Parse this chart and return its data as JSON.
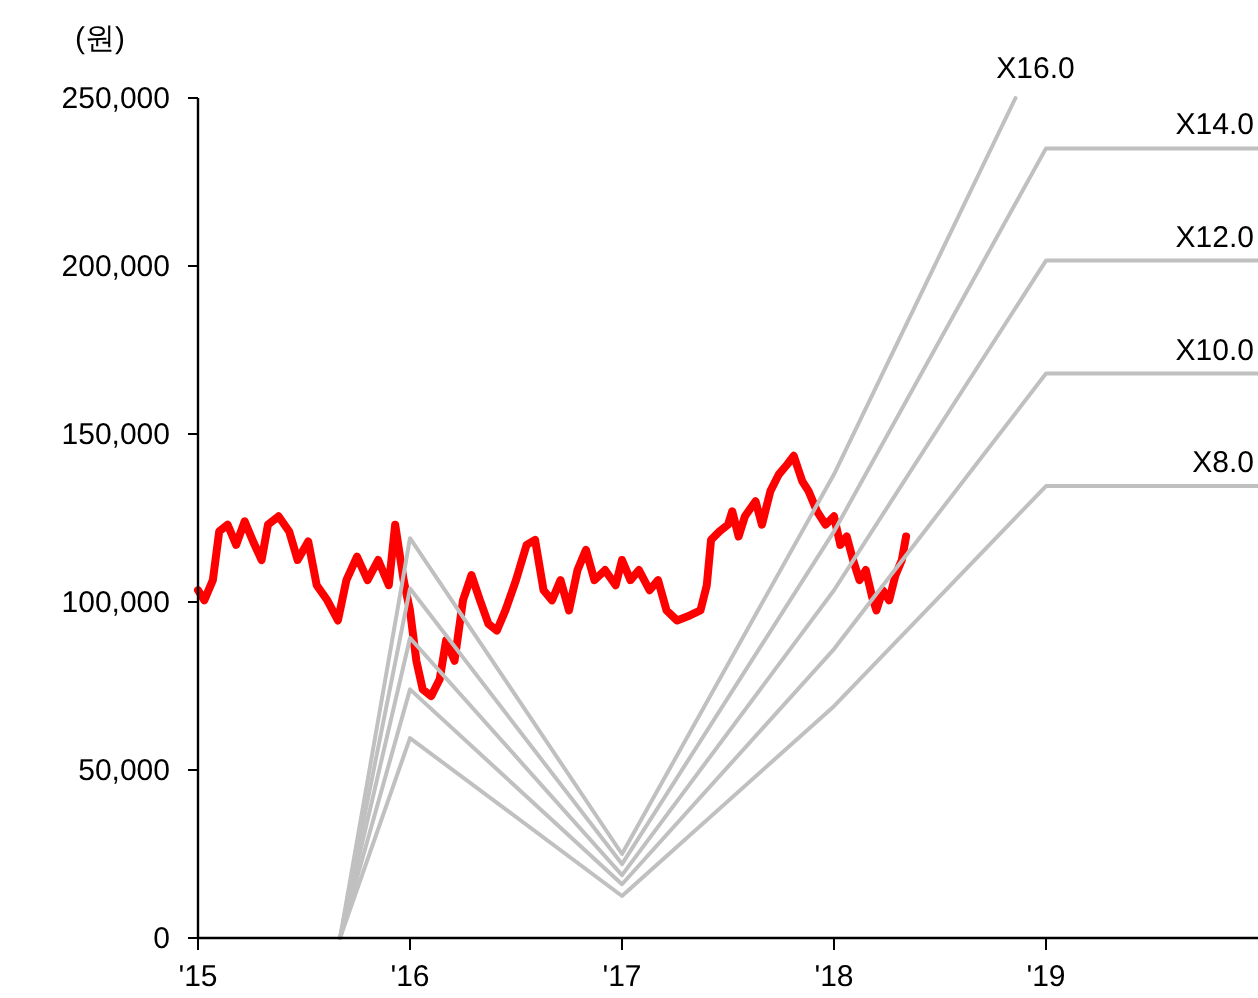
{
  "chart_data": {
    "type": "line",
    "ylabel": "(원)",
    "xlim": [
      2015,
      2020
    ],
    "ylim": [
      0,
      250000
    ],
    "xticks": [
      {
        "value": 2015,
        "label": "'15"
      },
      {
        "value": 2016,
        "label": "'16"
      },
      {
        "value": 2017,
        "label": "'17"
      },
      {
        "value": 2018,
        "label": "'18"
      },
      {
        "value": 2019,
        "label": "'19"
      }
    ],
    "yticks": [
      {
        "value": 0,
        "label": "0"
      },
      {
        "value": 50000,
        "label": "50,000"
      },
      {
        "value": 100000,
        "label": "100,000"
      },
      {
        "value": 150000,
        "label": "150,000"
      },
      {
        "value": 200000,
        "label": "200,000"
      },
      {
        "value": 250000,
        "label": "250,000"
      }
    ],
    "grid": false,
    "marker": "none",
    "line_style": "solid",
    "series": [
      {
        "color": "#ff0000",
        "x": [
          2015.0,
          2015.03,
          2015.07,
          2015.1,
          2015.14,
          2015.18,
          2015.22,
          2015.26,
          2015.3,
          2015.33,
          2015.38,
          2015.43,
          2015.47,
          2015.52,
          2015.56,
          2015.61,
          2015.66,
          2015.7,
          2015.75,
          2015.8,
          2015.85,
          2015.9,
          2015.93,
          2015.97,
          2016.0,
          2016.03,
          2016.06,
          2016.1,
          2016.14,
          2016.17,
          2016.21,
          2016.25,
          2016.29,
          2016.33,
          2016.37,
          2016.41,
          2016.45,
          2016.5,
          2016.55,
          2016.59,
          2016.63,
          2016.67,
          2016.71,
          2016.75,
          2016.79,
          2016.83,
          2016.87,
          2016.92,
          2016.97,
          2017.0,
          2017.04,
          2017.08,
          2017.13,
          2017.17,
          2017.21,
          2017.26,
          2017.32,
          2017.37,
          2017.4,
          2017.42,
          2017.46,
          2017.5,
          2017.52,
          2017.55,
          2017.58,
          2017.63,
          2017.66,
          2017.7,
          2017.74,
          2017.78,
          2017.81,
          2017.85,
          2017.88,
          2017.92,
          2017.96,
          2018.0,
          2018.03,
          2018.06,
          2018.09,
          2018.12,
          2018.15,
          2018.18,
          2018.2,
          2018.23,
          2018.26,
          2018.29,
          2018.32,
          2018.34
        ],
        "values": [
          103500,
          100500,
          106500,
          121000,
          123000,
          117000,
          124000,
          118000,
          112500,
          123000,
          125500,
          121000,
          112500,
          118000,
          105000,
          100500,
          94500,
          106500,
          113500,
          106500,
          112500,
          105000,
          123000,
          106500,
          97500,
          82500,
          74000,
          72000,
          77000,
          88500,
          82500,
          100500,
          108000,
          100500,
          93500,
          91500,
          97500,
          106500,
          117000,
          118500,
          103500,
          100500,
          106500,
          97500,
          109500,
          115500,
          106500,
          109500,
          105000,
          112500,
          106500,
          109500,
          103500,
          106500,
          97500,
          94500,
          96000,
          97500,
          105000,
          118500,
          121000,
          123000,
          127000,
          119500,
          125500,
          130000,
          123000,
          133000,
          138000,
          141000,
          143500,
          136000,
          133000,
          127000,
          123000,
          125500,
          117000,
          119500,
          112500,
          106500,
          109500,
          101500,
          97500,
          103500,
          100500,
          108000,
          112500,
          119500
        ]
      },
      {
        "name": "X16.0",
        "color": "#c0c0c0",
        "x": [
          2015.67,
          2016,
          2017,
          2018,
          2018.856
        ],
        "values": [
          0,
          119000,
          25000,
          138000,
          250000
        ]
      },
      {
        "name": "X14.0",
        "color": "#c0c0c0",
        "x": [
          2015.67,
          2016,
          2017,
          2018,
          2019,
          2020
        ],
        "values": [
          0,
          104000,
          22000,
          121000,
          235000,
          235000
        ]
      },
      {
        "name": "X12.0",
        "color": "#c0c0c0",
        "x": [
          2015.67,
          2016,
          2017,
          2018,
          2019,
          2020
        ],
        "values": [
          0,
          89300,
          18700,
          103500,
          201600,
          201600
        ]
      },
      {
        "name": "X10.0",
        "color": "#c0c0c0",
        "x": [
          2015.67,
          2016,
          2017,
          2018,
          2019,
          2020
        ],
        "values": [
          0,
          74000,
          16000,
          86000,
          168000,
          168000
        ]
      },
      {
        "name": "X8.0",
        "color": "#c0c0c0",
        "x": [
          2015.67,
          2016,
          2017,
          2018,
          2019,
          2020
        ],
        "values": [
          0,
          59500,
          12500,
          69000,
          134500,
          134500
        ]
      }
    ]
  }
}
